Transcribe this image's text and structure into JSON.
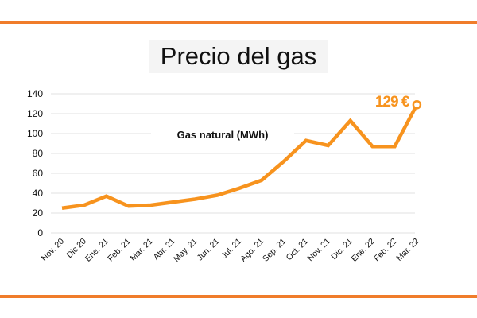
{
  "colors": {
    "accent": "#f7931e",
    "rule": "#f07c2a",
    "grid": "#e2e2e2"
  },
  "chart_data": {
    "type": "line",
    "title": "Precio del gas",
    "legend_label": "Gas natural (MWh)",
    "categories": [
      "Nov. 20",
      "Dic 20",
      "Ene. 21",
      "Feb. 21",
      "Mar. 21",
      "Abr. 21",
      "May. 21",
      "Jun. 21",
      "Jul. 21",
      "Ago. 21",
      "Sep. 21",
      "Oct. 21",
      "Nov. 21",
      "Dic. 21",
      "Ene. 22",
      "Feb. 22",
      "Mar. 22"
    ],
    "values": [
      25,
      28,
      37,
      27,
      28,
      31,
      34,
      38,
      45,
      53,
      72,
      93,
      88,
      113,
      87,
      87,
      129
    ],
    "ylim": [
      0,
      140
    ],
    "yticks": [
      0,
      20,
      40,
      60,
      80,
      100,
      120,
      140
    ],
    "grid": true,
    "annotation": "129 €"
  }
}
